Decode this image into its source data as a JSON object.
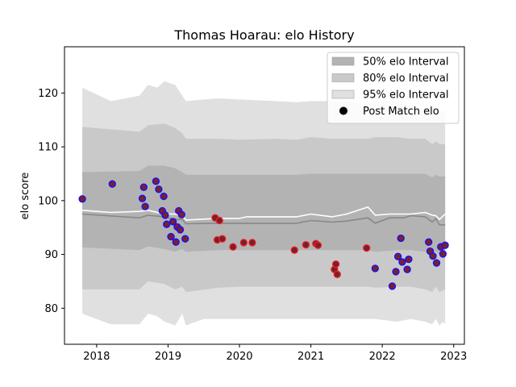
{
  "chart_data": {
    "type": "line",
    "title": "Thomas Hoarau: elo History",
    "xlabel": "",
    "ylabel": "elo score",
    "xlim": [
      2017.55,
      2023.15
    ],
    "ylim": [
      73.3,
      128.6
    ],
    "xticks": [
      2018,
      2019,
      2020,
      2021,
      2022,
      2023
    ],
    "xtick_labels": [
      "2018",
      "2019",
      "2020",
      "2021",
      "2022",
      "2023"
    ],
    "yticks": [
      80,
      90,
      100,
      110,
      120
    ],
    "ytick_labels": [
      "80",
      "90",
      "100",
      "110",
      "120"
    ],
    "legend_position": "top-right",
    "colors": {
      "band_50": "#b3b3b3",
      "band_80": "#c9c9c9",
      "band_95": "#e0e0e0",
      "mean_line": "#888888",
      "median_line": "#ffffff",
      "point_fill": "#7b1e2e",
      "point_edge_blue": "#1010ff",
      "point_edge_red": "#ee2020"
    },
    "legend": [
      {
        "label": "50% elo Interval",
        "kind": "band",
        "color": "#b3b3b3"
      },
      {
        "label": "80% elo Interval",
        "kind": "band",
        "color": "#c9c9c9"
      },
      {
        "label": "95% elo Interval",
        "kind": "band",
        "color": "#e0e0e0"
      },
      {
        "label": "Post Match elo",
        "kind": "point",
        "color": "#000000"
      }
    ],
    "series": [
      {
        "name": "",
        "kind": "band",
        "x": [
          2017.8,
          2018.2,
          2018.6,
          2018.72,
          2018.85,
          2018.95,
          2019.1,
          2019.2,
          2019.25,
          2019.5,
          2019.7,
          2020.0,
          2020.5,
          2020.8,
          2021.0,
          2021.3,
          2021.5,
          2021.8,
          2021.9,
          2022.2,
          2022.4,
          2022.6,
          2022.7,
          2022.75,
          2022.8,
          2022.85,
          2022.88
        ],
        "upper": [
          121.0,
          118.5,
          119.5,
          121.5,
          121.0,
          122.2,
          121.5,
          119.5,
          118.5,
          118.8,
          119.0,
          118.8,
          118.5,
          118.3,
          118.5,
          118.5,
          118.3,
          118.0,
          118.5,
          118.5,
          117.5,
          117.0,
          116.0,
          116.5,
          117.0,
          116.5,
          117.0
        ],
        "lower": [
          79.0,
          77.0,
          77.0,
          79.0,
          78.5,
          77.5,
          76.8,
          79.0,
          76.8,
          78.0,
          78.0,
          78.0,
          78.0,
          78.0,
          78.0,
          78.0,
          78.0,
          78.0,
          78.0,
          77.5,
          78.0,
          77.5,
          77.0,
          78.0,
          76.8,
          77.5,
          77.0
        ]
      },
      {
        "name": "",
        "kind": "band",
        "x": [
          2017.8,
          2018.6,
          2018.72,
          2018.95,
          2019.1,
          2019.2,
          2019.25,
          2019.7,
          2020.0,
          2020.5,
          2020.8,
          2021.0,
          2021.3,
          2021.5,
          2021.8,
          2021.9,
          2022.2,
          2022.4,
          2022.6,
          2022.7,
          2022.75,
          2022.8,
          2022.88
        ],
        "upper": [
          113.7,
          112.8,
          114.0,
          114.3,
          113.5,
          112.5,
          111.5,
          111.5,
          111.3,
          111.5,
          111.3,
          111.8,
          111.5,
          111.5,
          111.5,
          111.8,
          111.8,
          111.5,
          111.5,
          110.5,
          111.0,
          110.5,
          110.5
        ],
        "lower": [
          83.5,
          83.5,
          85.0,
          84.5,
          83.5,
          84.0,
          83.0,
          83.8,
          84.0,
          84.0,
          84.0,
          84.0,
          84.0,
          84.0,
          84.0,
          83.8,
          84.0,
          84.0,
          83.5,
          83.0,
          84.0,
          83.0,
          83.5
        ]
      },
      {
        "name": "",
        "kind": "band",
        "x": [
          2017.8,
          2018.6,
          2018.72,
          2018.95,
          2019.1,
          2019.2,
          2019.25,
          2019.7,
          2020.0,
          2020.5,
          2020.8,
          2021.0,
          2021.3,
          2021.5,
          2021.8,
          2021.9,
          2022.2,
          2022.4,
          2022.6,
          2022.7,
          2022.75,
          2022.8,
          2022.88
        ],
        "upper": [
          105.3,
          105.5,
          106.5,
          106.5,
          106.0,
          105.3,
          104.8,
          104.8,
          104.8,
          104.8,
          104.8,
          105.0,
          105.0,
          105.0,
          105.0,
          105.0,
          105.0,
          105.0,
          105.0,
          104.3,
          104.8,
          104.5,
          104.5
        ],
        "lower": [
          91.3,
          90.8,
          91.5,
          91.0,
          90.5,
          91.0,
          90.5,
          90.8,
          90.8,
          90.8,
          90.8,
          90.8,
          90.8,
          90.8,
          90.8,
          90.5,
          90.8,
          90.8,
          90.5,
          90.3,
          90.5,
          90.0,
          90.3
        ]
      },
      {
        "name": "",
        "kind": "line",
        "color": "#888888",
        "x": [
          2017.8,
          2018.6,
          2018.72,
          2018.95,
          2019.1,
          2019.2,
          2019.25,
          2019.7,
          2020.0,
          2020.5,
          2020.8,
          2021.0,
          2021.3,
          2021.5,
          2021.8,
          2021.9,
          2022.1,
          2022.3,
          2022.4,
          2022.6,
          2022.7,
          2022.75,
          2022.8,
          2022.88
        ],
        "values": [
          97.5,
          96.8,
          97.3,
          97.0,
          96.5,
          96.5,
          95.7,
          95.8,
          95.8,
          95.8,
          95.8,
          96.3,
          96.0,
          96.2,
          96.8,
          95.8,
          96.8,
          96.8,
          97.2,
          97.0,
          96.0,
          96.7,
          95.5,
          95.5
        ]
      },
      {
        "name": "",
        "kind": "line",
        "color": "#ffffff",
        "x": [
          2017.8,
          2018.2,
          2018.6,
          2018.72,
          2018.95,
          2019.1,
          2019.2,
          2019.25,
          2019.7,
          2020.0,
          2020.1,
          2020.5,
          2020.8,
          2021.0,
          2021.3,
          2021.5,
          2021.8,
          2021.9,
          2022.1,
          2022.3,
          2022.4,
          2022.6,
          2022.7,
          2022.75,
          2022.8,
          2022.88
        ],
        "values": [
          98.2,
          97.8,
          98.0,
          98.2,
          97.5,
          97.5,
          97.3,
          96.4,
          96.7,
          96.7,
          97.0,
          97.0,
          97.0,
          97.5,
          97.0,
          97.5,
          98.8,
          97.3,
          97.5,
          97.5,
          97.5,
          97.8,
          97.3,
          97.2,
          96.5,
          97.5
        ]
      },
      {
        "name": "",
        "kind": "scatter",
        "points": [
          {
            "x": 2017.8,
            "y": 100.3,
            "edge": "blue"
          },
          {
            "x": 2018.22,
            "y": 103.1,
            "edge": "blue"
          },
          {
            "x": 2018.64,
            "y": 100.4,
            "edge": "blue"
          },
          {
            "x": 2018.66,
            "y": 102.5,
            "edge": "blue"
          },
          {
            "x": 2018.68,
            "y": 98.9,
            "edge": "blue"
          },
          {
            "x": 2018.83,
            "y": 103.6,
            "edge": "blue"
          },
          {
            "x": 2018.87,
            "y": 102.1,
            "edge": "blue"
          },
          {
            "x": 2018.92,
            "y": 98.1,
            "edge": "blue"
          },
          {
            "x": 2018.94,
            "y": 100.8,
            "edge": "blue"
          },
          {
            "x": 2018.96,
            "y": 97.3,
            "edge": "blue"
          },
          {
            "x": 2018.98,
            "y": 95.6,
            "edge": "blue"
          },
          {
            "x": 2019.04,
            "y": 93.3,
            "edge": "blue"
          },
          {
            "x": 2019.07,
            "y": 96.1,
            "edge": "blue"
          },
          {
            "x": 2019.11,
            "y": 92.3,
            "edge": "blue"
          },
          {
            "x": 2019.13,
            "y": 95.1,
            "edge": "blue"
          },
          {
            "x": 2019.15,
            "y": 98.1,
            "edge": "blue"
          },
          {
            "x": 2019.17,
            "y": 94.6,
            "edge": "blue"
          },
          {
            "x": 2019.19,
            "y": 97.4,
            "edge": "blue"
          },
          {
            "x": 2019.24,
            "y": 92.9,
            "edge": "blue"
          },
          {
            "x": 2019.66,
            "y": 96.8,
            "edge": "red"
          },
          {
            "x": 2019.69,
            "y": 92.7,
            "edge": "red"
          },
          {
            "x": 2019.72,
            "y": 96.3,
            "edge": "red"
          },
          {
            "x": 2019.76,
            "y": 92.9,
            "edge": "red"
          },
          {
            "x": 2019.91,
            "y": 91.4,
            "edge": "red"
          },
          {
            "x": 2020.06,
            "y": 92.2,
            "edge": "red"
          },
          {
            "x": 2020.18,
            "y": 92.2,
            "edge": "red"
          },
          {
            "x": 2020.77,
            "y": 90.8,
            "edge": "red"
          },
          {
            "x": 2020.93,
            "y": 91.8,
            "edge": "red"
          },
          {
            "x": 2021.07,
            "y": 92.0,
            "edge": "red"
          },
          {
            "x": 2021.1,
            "y": 91.7,
            "edge": "red"
          },
          {
            "x": 2021.33,
            "y": 87.2,
            "edge": "red"
          },
          {
            "x": 2021.35,
            "y": 88.2,
            "edge": "red"
          },
          {
            "x": 2021.37,
            "y": 86.3,
            "edge": "red"
          },
          {
            "x": 2021.78,
            "y": 91.2,
            "edge": "red"
          },
          {
            "x": 2021.9,
            "y": 87.4,
            "edge": "blue"
          },
          {
            "x": 2022.14,
            "y": 84.1,
            "edge": "blue"
          },
          {
            "x": 2022.19,
            "y": 86.8,
            "edge": "blue"
          },
          {
            "x": 2022.22,
            "y": 89.6,
            "edge": "blue"
          },
          {
            "x": 2022.26,
            "y": 93.0,
            "edge": "blue"
          },
          {
            "x": 2022.28,
            "y": 88.6,
            "edge": "blue"
          },
          {
            "x": 2022.35,
            "y": 87.2,
            "edge": "blue"
          },
          {
            "x": 2022.37,
            "y": 89.1,
            "edge": "blue"
          },
          {
            "x": 2022.65,
            "y": 92.3,
            "edge": "blue"
          },
          {
            "x": 2022.67,
            "y": 90.6,
            "edge": "blue"
          },
          {
            "x": 2022.71,
            "y": 89.7,
            "edge": "blue"
          },
          {
            "x": 2022.76,
            "y": 88.4,
            "edge": "blue"
          },
          {
            "x": 2022.82,
            "y": 91.4,
            "edge": "blue"
          },
          {
            "x": 2022.85,
            "y": 90.1,
            "edge": "blue"
          },
          {
            "x": 2022.88,
            "y": 91.7,
            "edge": "blue"
          }
        ]
      }
    ]
  }
}
